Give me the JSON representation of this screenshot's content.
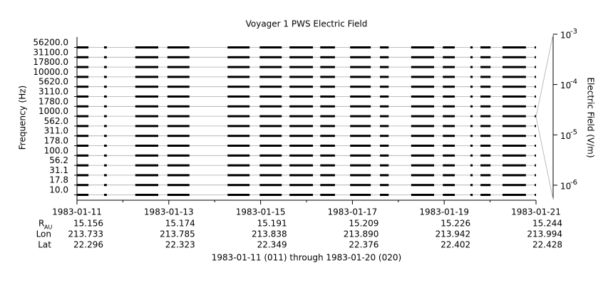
{
  "chart_data": {
    "type": "timeline",
    "title": "Voyager 1 PWS Electric Field",
    "ylabel": "Frequency (Hz)",
    "y2label": "Electric Field (V/m)",
    "categories": [
      "56200.0",
      "31100.0",
      "17800.0",
      "10000.0",
      "5620.0",
      "3110.0",
      "1780.0",
      "1000.0",
      "562.0",
      "311.0",
      "178.0",
      "100.0",
      "56.2",
      "31.1",
      "17.8",
      "10.0"
    ],
    "intervals": [
      [
        0.0,
        0.25
      ],
      [
        0.59,
        0.65
      ],
      [
        1.27,
        1.77
      ],
      [
        1.97,
        2.45
      ],
      [
        3.28,
        3.76
      ],
      [
        3.98,
        4.46
      ],
      [
        4.63,
        5.14
      ],
      [
        5.3,
        5.62
      ],
      [
        5.95,
        6.4
      ],
      [
        6.6,
        6.79
      ],
      [
        7.28,
        7.78
      ],
      [
        7.97,
        8.23
      ],
      [
        8.57,
        8.62
      ],
      [
        8.79,
        9.01
      ],
      [
        9.27,
        9.78
      ],
      [
        9.97,
        10.0
      ]
    ],
    "color": "#000000",
    "grid": true,
    "xlim": [
      0,
      10
    ],
    "xticks": [
      {
        "value": 0,
        "label": "1983-01-11"
      },
      {
        "value": 2,
        "label": "1983-01-13"
      },
      {
        "value": 4,
        "label": "1983-01-15"
      },
      {
        "value": 6,
        "label": "1983-01-17"
      },
      {
        "value": 8,
        "label": "1983-01-19"
      },
      {
        "value": 10,
        "label": "1983-01-21"
      }
    ],
    "xminorticks": [
      1,
      3,
      5,
      7,
      9
    ],
    "y2scale": "log",
    "y2lim": [
      5.2e-07,
      0.001
    ],
    "y2ticks": [
      {
        "value": 0.001,
        "label": "10",
        "exponent": "-3"
      },
      {
        "value": 0.0001,
        "label": "10",
        "exponent": "-4"
      },
      {
        "value": 1e-05,
        "label": "10",
        "exponent": "-5"
      },
      {
        "value": 1e-06,
        "label": "10",
        "exponent": "-6"
      }
    ],
    "footer": "1983-01-11 (011) through 1983-01-20 (020)"
  },
  "ephemeris": {
    "rows": [
      {
        "label": "R",
        "subscript": "AU",
        "values": [
          "15.156",
          "15.174",
          "15.191",
          "15.209",
          "15.226",
          "15.244"
        ]
      },
      {
        "label": "Lon",
        "values": [
          "213.733",
          "213.785",
          "213.838",
          "213.890",
          "213.942",
          "213.994"
        ]
      },
      {
        "label": "Lat",
        "values": [
          "22.296",
          "22.323",
          "22.349",
          "22.376",
          "22.402",
          "22.428"
        ]
      }
    ]
  }
}
